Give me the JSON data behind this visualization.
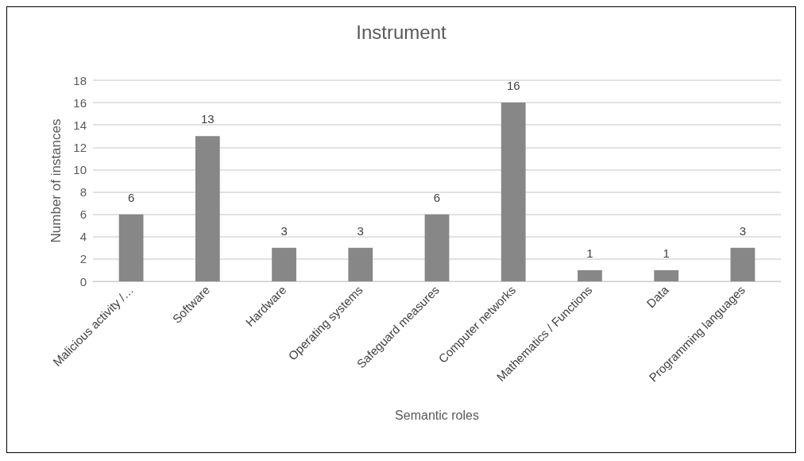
{
  "chart_data": {
    "type": "bar",
    "title": "Instrument",
    "xlabel": "Semantic roles",
    "ylabel": "Number of instances",
    "categories": [
      "Malicious activity /…",
      "Software",
      "Hardware",
      "Operating systems",
      "Safeguard measures",
      "Computer networks",
      "Mathematics / Functions",
      "Data",
      "Programming languages"
    ],
    "values": [
      6,
      13,
      3,
      3,
      6,
      16,
      1,
      1,
      3
    ],
    "color": "#878787",
    "ylim": [
      0,
      18
    ],
    "yticks": [
      0,
      2,
      4,
      6,
      8,
      10,
      12,
      14,
      16,
      18
    ],
    "grid": "y",
    "data_labels": true
  }
}
